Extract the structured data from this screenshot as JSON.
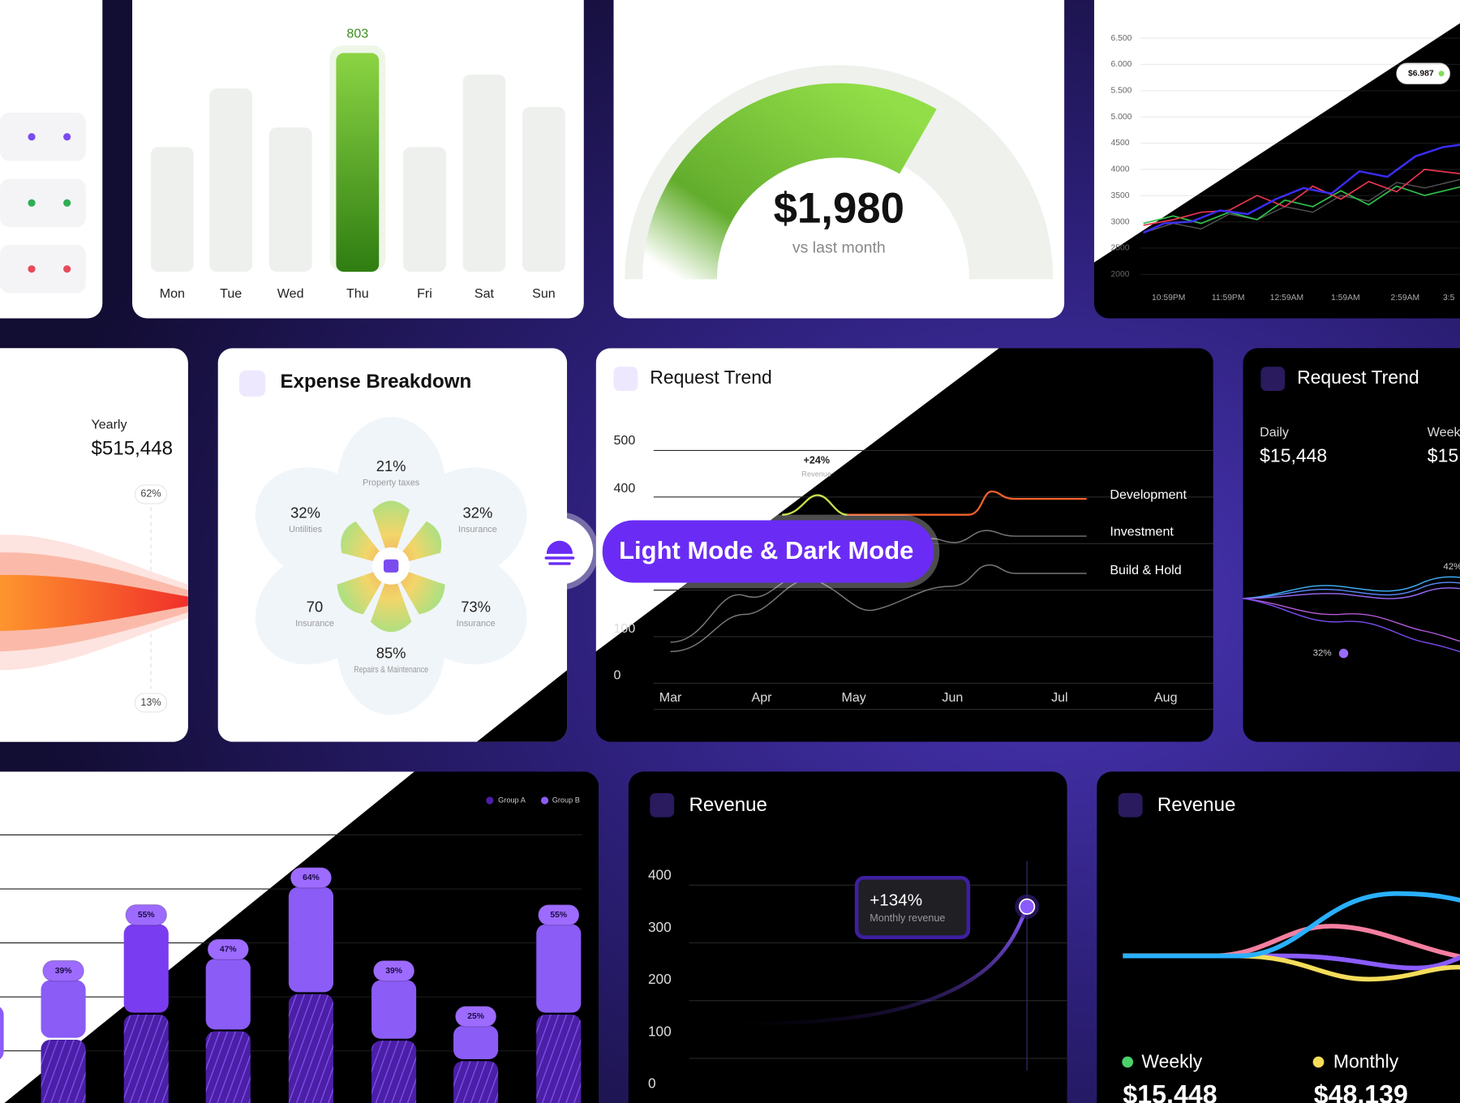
{
  "sales": {
    "highlight": "803",
    "days": [
      "Mon",
      "Tue",
      "Wed",
      "Thu",
      "Fri",
      "Sat",
      "Sun"
    ]
  },
  "expenses": {
    "amount": "$1,980",
    "caption": "vs last month"
  },
  "live_chart": {
    "yticks": [
      "6.500",
      "6.000",
      "5.500",
      "5.000",
      "4500",
      "4000",
      "3500",
      "3000",
      "2500",
      "2000"
    ],
    "xticks": [
      "10:59PM",
      "11:59PM",
      "12:59AM",
      "1:59AM",
      "2:59AM",
      "3:5"
    ],
    "tooltip": "$6.987"
  },
  "yearly": {
    "label": "Yearly",
    "amount": "$515,448",
    "top": "62%",
    "bottom": "13%"
  },
  "expense_breakdown": {
    "title": "Expense Breakdown",
    "segments": [
      {
        "value": "21%",
        "label": "Property taxes"
      },
      {
        "value": "32%",
        "label": "Untilities"
      },
      {
        "value": "32%",
        "label": "Insurance"
      },
      {
        "value": "70",
        "label": "Insurance"
      },
      {
        "value": "73%",
        "label": "Insurance"
      },
      {
        "value": "85%",
        "label": "Repairs & Maintenance"
      }
    ]
  },
  "request_trend": {
    "title": "Request Trend",
    "yticks": [
      "500",
      "400",
      "100",
      "0"
    ],
    "annotation": "+24%",
    "annotation_label": "Revenue",
    "series": [
      "Development",
      "Investment",
      "Build & Hold"
    ],
    "months": [
      "Mar",
      "Apr",
      "May",
      "Jun",
      "Jul",
      "Aug"
    ]
  },
  "badge": "Light Mode & Dark Mode",
  "request_trend_dark": {
    "title": "Request Trend",
    "stats": [
      {
        "label": "Daily",
        "value": "$15,448"
      },
      {
        "label": "Week",
        "value": "$15,"
      }
    ],
    "labels": [
      "42%",
      "32%"
    ]
  },
  "group_bars": {
    "legend": [
      "Group A",
      "Group B"
    ],
    "labels": [
      "39%",
      "55%",
      "47%",
      "64%",
      "39%",
      "25%",
      "55%"
    ]
  },
  "revenue": {
    "title": "Revenue",
    "yticks": [
      "400",
      "300",
      "200",
      "100",
      "0"
    ],
    "callout": "+134%",
    "callout_label": "Monthly revenue"
  },
  "revenue_legend": {
    "title": "Revenue",
    "stats": [
      {
        "label": "Weekly",
        "value": "$15,448"
      },
      {
        "label": "Monthly",
        "value": "$48,139"
      }
    ]
  }
}
